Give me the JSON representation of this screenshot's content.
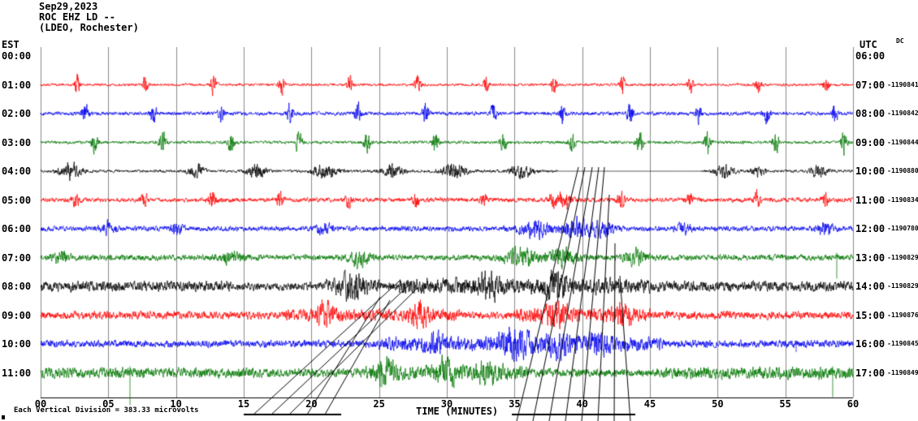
{
  "header": {
    "date": "Sep29,2023",
    "station_line": "ROC EHZ LD --",
    "location_line": "(LDEO, Rochester)"
  },
  "axes": {
    "left_label": "EST",
    "right_label": "UTC",
    "dc_label": "DC",
    "x_label": "TIME (MINUTES)",
    "x_ticks": [
      "00",
      "05",
      "10",
      "15",
      "20",
      "25",
      "30",
      "35",
      "40",
      "45",
      "50",
      "55",
      "60"
    ]
  },
  "footer": {
    "scale_note": "Each Vertical Division = 383.33 microvolts"
  },
  "chart_data": {
    "type": "line",
    "title": "ROC EHZ LD -- (LDEO, Rochester) Sep29,2023 heliplot seismogram",
    "xlabel": "TIME (MINUTES)",
    "x_range": [
      0,
      60
    ],
    "x_tick_interval_minutes": 5,
    "grid": true,
    "colors_cycle": [
      "#ff0000",
      "#0000ee",
      "#007700",
      "#000000"
    ],
    "rows": [
      {
        "est": "00:00",
        "utc": "06:00",
        "counts": ""
      },
      {
        "est": "01:00",
        "utc": "07:00",
        "counts": "-1190841",
        "color": "#ff0000",
        "noise": 1.6,
        "bursts_periodic": {
          "start": 2.7,
          "period": 5.03,
          "amp": 11,
          "width": 0.2
        }
      },
      {
        "est": "02:00",
        "utc": "08:00",
        "counts": "-1190842",
        "color": "#0000ee",
        "noise": 2.2,
        "bursts_periodic": {
          "start": 3.3,
          "period": 5.03,
          "amp": 12,
          "width": 0.22
        }
      },
      {
        "est": "03:00",
        "utc": "09:00",
        "counts": "-1190844",
        "color": "#007700",
        "noise": 1.8,
        "bursts_periodic": {
          "start": 4.0,
          "period": 5.03,
          "amp": 13,
          "width": 0.24
        }
      },
      {
        "est": "04:00",
        "utc": "10:00",
        "counts": "-1190880",
        "color": "#000000",
        "noise": 1.6,
        "packets": [
          [
            2.2,
            9,
            0.8
          ],
          [
            11.5,
            7,
            0.6
          ],
          [
            16,
            8,
            0.7
          ],
          [
            21,
            9,
            0.9
          ],
          [
            26,
            8,
            0.8
          ],
          [
            30.5,
            9,
            0.9
          ],
          [
            35.5,
            8,
            0.8
          ],
          [
            50.5,
            7,
            0.7
          ],
          [
            53,
            6,
            0.5
          ],
          [
            57.5,
            7,
            0.6
          ]
        ],
        "gap": [
          38.2,
          48.8
        ]
      },
      {
        "est": "05:00",
        "utc": "11:00",
        "counts": "-1190834",
        "color": "#ff0000",
        "noise": 2.6,
        "bursts_periodic": {
          "start": 2.6,
          "period": 5.03,
          "amp": 8,
          "width": 0.26
        },
        "packets": [
          [
            38.7,
            10,
            0.5
          ]
        ]
      },
      {
        "est": "06:00",
        "utc": "12:00",
        "counts": "-1190780",
        "color": "#0000ee",
        "noise": 3.0,
        "packets": [
          [
            5,
            7,
            0.5
          ],
          [
            10,
            6,
            0.5
          ],
          [
            21,
            7,
            0.6
          ],
          [
            36.5,
            9,
            1.2
          ],
          [
            39.5,
            11,
            1.0
          ],
          [
            41.5,
            9,
            0.8
          ],
          [
            47.5,
            6,
            0.5
          ],
          [
            58,
            7,
            0.6
          ]
        ]
      },
      {
        "est": "07:00",
        "utc": "13:00",
        "counts": "-1190829",
        "color": "#007700",
        "noise": 3.4,
        "packets": [
          [
            1.5,
            6,
            0.6
          ],
          [
            14,
            6,
            0.8
          ],
          [
            23.5,
            8,
            0.8
          ],
          [
            35.5,
            9,
            1.2
          ],
          [
            38.5,
            10,
            1.0
          ],
          [
            44,
            7,
            0.8
          ]
        ],
        "spikes": [
          [
            58.8,
            26,
            6
          ]
        ]
      },
      {
        "est": "08:00",
        "utc": "14:00",
        "counts": "-1190829",
        "color": "#000000",
        "noise": 4.5,
        "segments": [
          [
            0,
            14,
            6
          ],
          [
            21,
            25,
            9
          ],
          [
            26.5,
            45,
            9
          ],
          [
            45,
            60,
            6
          ]
        ],
        "packets": [
          [
            23,
            12,
            0.6
          ],
          [
            33,
            12,
            0.8
          ],
          [
            38,
            12,
            0.8
          ]
        ],
        "spikes": [
          [
            23.3,
            14,
            10
          ]
        ]
      },
      {
        "est": "09:00",
        "utc": "15:00",
        "counts": "-1190876",
        "color": "#ff0000",
        "noise": 4.5,
        "segments": [
          [
            18,
            31,
            7
          ],
          [
            35,
            45,
            8
          ]
        ],
        "packets": [
          [
            21,
            10,
            0.7
          ],
          [
            28,
            10,
            0.7
          ],
          [
            38,
            10,
            1.0
          ],
          [
            43,
            9,
            0.7
          ]
        ]
      },
      {
        "est": "10:00",
        "utc": "16:00",
        "counts": "-1190845",
        "color": "#0000ee",
        "noise": 4.2,
        "segments": [
          [
            25,
            46,
            8
          ]
        ],
        "packets": [
          [
            29,
            9,
            0.7
          ],
          [
            35,
            13,
            1.2
          ],
          [
            38,
            13,
            1.0
          ],
          [
            41,
            10,
            0.8
          ]
        ],
        "spikes": [
          [
            55.8,
            10,
            4
          ]
        ]
      },
      {
        "est": "11:00",
        "utc": "17:00",
        "counts": "-1190849",
        "color": "#007700",
        "noise": 4.8,
        "segments": [
          [
            0,
            16,
            6
          ],
          [
            24,
            36,
            8
          ],
          [
            46,
            60,
            7
          ]
        ],
        "packets": [
          [
            25.5,
            10,
            0.7
          ],
          [
            30,
            11,
            0.8
          ],
          [
            33,
            10,
            0.8
          ]
        ],
        "spikes": [
          [
            6.6,
            40,
            8
          ],
          [
            25.2,
            18,
            6
          ],
          [
            58.5,
            30,
            8
          ]
        ]
      }
    ],
    "annotations": {
      "underlines": [
        [
          300,
          420,
          511
        ],
        [
          630,
          782,
          511
        ]
      ],
      "lines": [
        [
          312,
          511,
          492,
          346
        ],
        [
          334,
          511,
          505,
          350
        ],
        [
          356,
          511,
          515,
          354
        ],
        [
          378,
          511,
          468,
          366
        ],
        [
          400,
          511,
          480,
          370
        ],
        [
          636,
          519,
          712,
          206
        ],
        [
          656,
          519,
          720,
          206
        ],
        [
          676,
          519,
          729,
          206
        ],
        [
          696,
          519,
          737,
          206
        ],
        [
          716,
          519,
          744,
          206
        ],
        [
          736,
          519,
          750,
          240
        ],
        [
          756,
          519,
          757,
          300
        ],
        [
          776,
          519,
          763,
          340
        ]
      ]
    }
  }
}
